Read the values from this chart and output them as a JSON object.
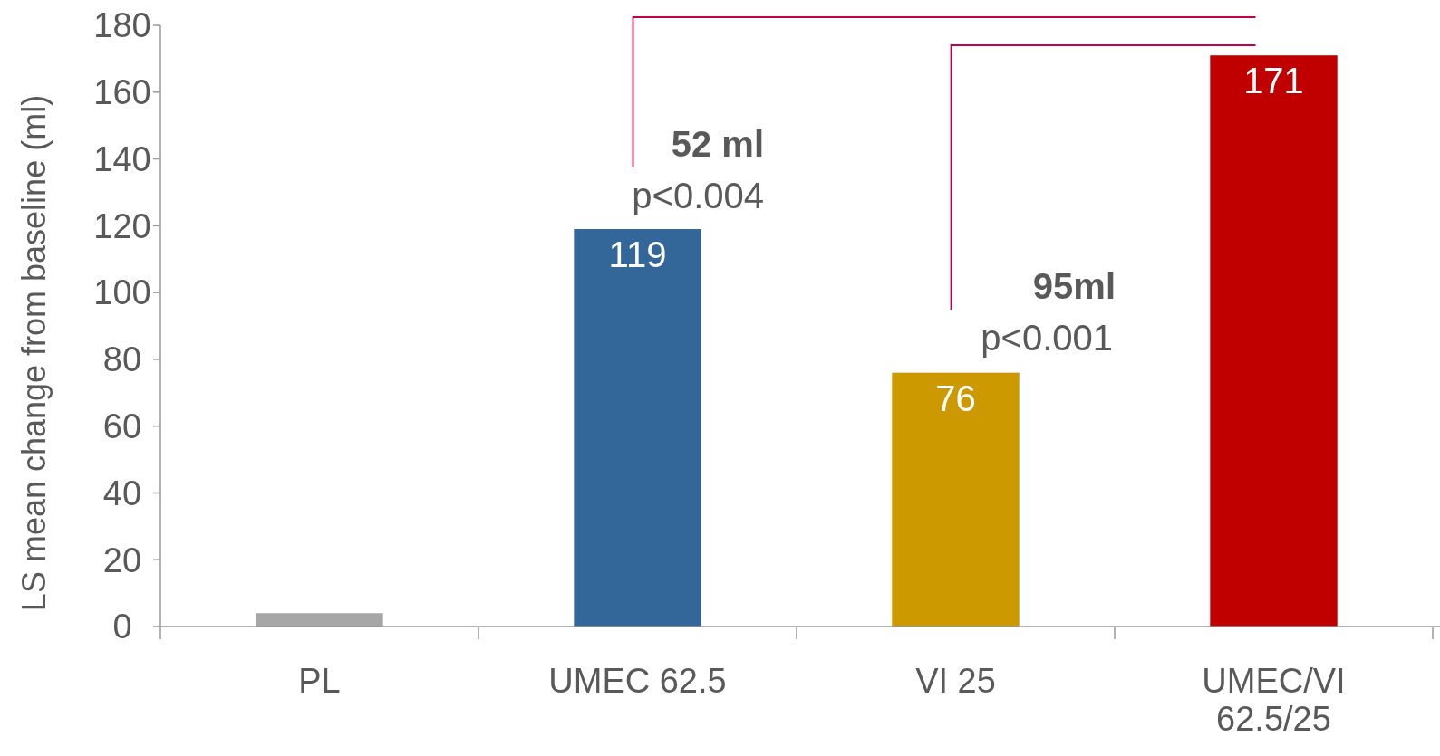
{
  "chart_data": {
    "type": "bar",
    "ylabel": "LS mean change from baseline (ml)",
    "categories": [
      "PL",
      "UMEC 62.5",
      "VI 25",
      "UMEC/VI 62.5/25"
    ],
    "values": [
      4,
      119,
      76,
      171
    ],
    "colors": [
      "#a6a6a6",
      "#336699",
      "#cc9900",
      "#c00000"
    ],
    "value_labels": [
      null,
      "119",
      "76",
      "171"
    ],
    "ylim": [
      0,
      180
    ],
    "yticks": [
      0,
      20,
      40,
      60,
      80,
      100,
      120,
      140,
      160,
      180
    ],
    "annotations": [
      "52 ml",
      "p<0.004",
      "95ml",
      "p<0.001"
    ]
  }
}
